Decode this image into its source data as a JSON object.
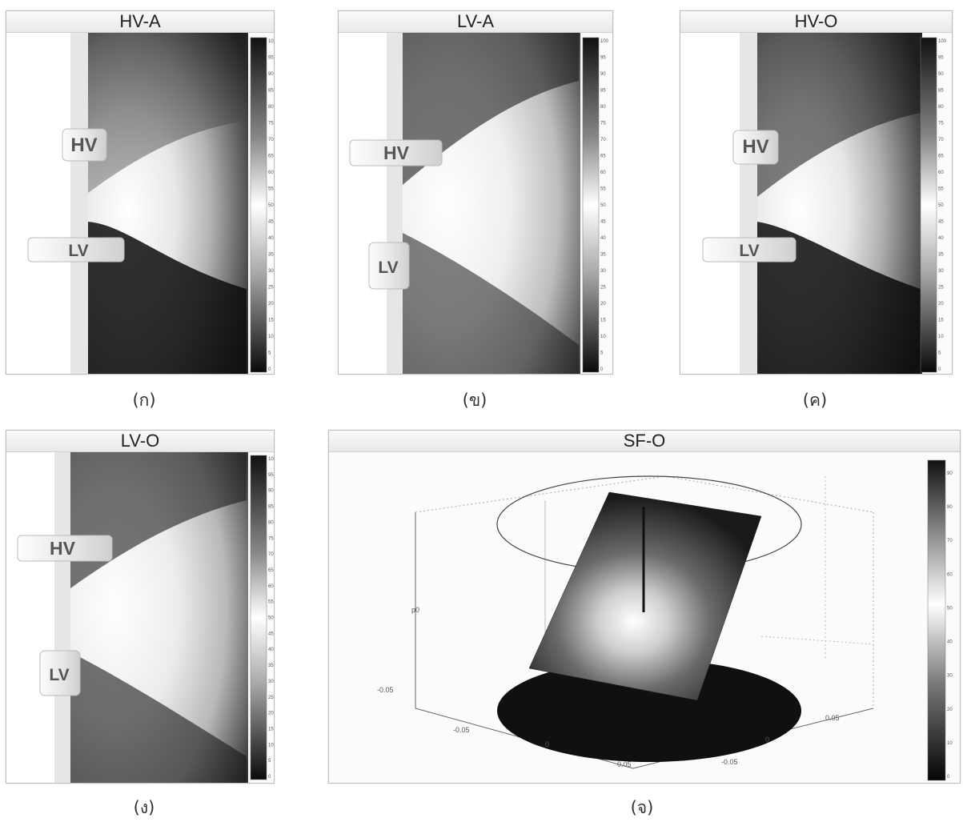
{
  "panels": [
    {
      "title": "HV-A",
      "caption": "(ก)",
      "top_label": "HV",
      "bottom_label": "LV"
    },
    {
      "title": "LV-A",
      "caption": "(ข)",
      "top_label": "HV",
      "bottom_label": "LV"
    },
    {
      "title": "HV-O",
      "caption": "(ค)",
      "top_label": "HV",
      "bottom_label": "LV"
    },
    {
      "title": "LV-O",
      "caption": "(ง)",
      "top_label": "HV",
      "bottom_label": "LV"
    }
  ],
  "surface": {
    "title": "SF-O",
    "caption": "(จ)",
    "axis_ticks": {
      "left_front": [
        "-0.05",
        "0",
        "0.05"
      ],
      "right_front": [
        "-0.05",
        "0",
        "0.05"
      ],
      "vertical": [
        "-0.05",
        "0"
      ]
    }
  },
  "colorbar_ticks_100": [
    "100",
    "95",
    "90",
    "85",
    "80",
    "75",
    "70",
    "65",
    "60",
    "55",
    "50",
    "45",
    "40",
    "35",
    "30",
    "25",
    "20",
    "15",
    "10",
    "5",
    "0"
  ],
  "colorbar_ticks_surface": [
    "90",
    "80",
    "70",
    "60",
    "50",
    "40",
    "30",
    "20",
    "10",
    "0"
  ]
}
